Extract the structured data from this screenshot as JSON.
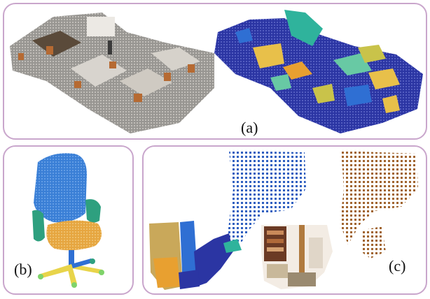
{
  "panels": {
    "a": {
      "label": "(a)"
    },
    "b": {
      "label": "(b)"
    },
    "c": {
      "label": "(c)"
    }
  },
  "colors": {
    "border": "#c9a6cc",
    "seg_navy": "#2b35a3",
    "seg_blue": "#2f6fd3",
    "seg_teal": "#2fb39c",
    "seg_mint": "#68c9a4",
    "seg_yellow": "#e8c04a",
    "seg_orange": "#e8a030",
    "seg_olive": "#c9c34a",
    "chair_blue": "#3a7fd6",
    "chair_orange": "#e6a640",
    "chair_teal": "#2ea07f",
    "photo_wood": "#a0642e",
    "photo_bg": "#f3ece4"
  }
}
